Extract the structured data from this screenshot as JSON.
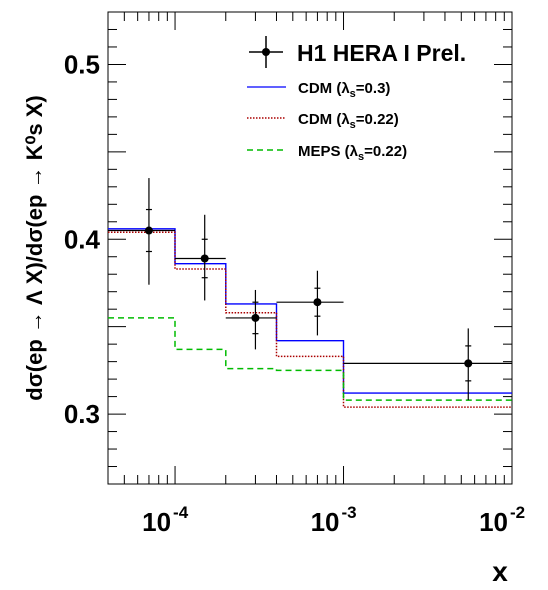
{
  "chart_data": {
    "type": "step",
    "x_scale": "log",
    "xlim": [
      4e-05,
      0.01
    ],
    "ylim": [
      0.26,
      0.53
    ],
    "xlabel": "x",
    "ylabel": "dσ(ep → Λ X)/dσ(ep → K⁰s X)",
    "x_tick_labels": [
      {
        "value": 0.0001,
        "base": "10",
        "exp": "-4"
      },
      {
        "value": 0.001,
        "base": "10",
        "exp": "-3"
      },
      {
        "value": 0.01,
        "base": "10",
        "exp": "-2"
      }
    ],
    "y_tick_labels": [
      {
        "value": 0.3,
        "label": "0.3"
      },
      {
        "value": 0.4,
        "label": "0.4"
      },
      {
        "value": 0.5,
        "label": "0.5"
      }
    ],
    "data_points": {
      "name": "H1 HERA I Prel.",
      "color": "#000000",
      "points": [
        {
          "x": 7e-05,
          "x_low": 4e-05,
          "x_high": 0.0001,
          "y": 0.405,
          "stat_low": 0.393,
          "stat_high": 0.417,
          "tot_low": 0.374,
          "tot_high": 0.435
        },
        {
          "x": 0.00015,
          "x_low": 0.0001,
          "x_high": 0.0002,
          "y": 0.389,
          "stat_low": 0.378,
          "stat_high": 0.4,
          "tot_low": 0.365,
          "tot_high": 0.414
        },
        {
          "x": 0.0003,
          "x_low": 0.0002,
          "x_high": 0.0004,
          "y": 0.355,
          "stat_low": 0.346,
          "stat_high": 0.364,
          "tot_low": 0.337,
          "tot_high": 0.371
        },
        {
          "x": 0.0007,
          "x_low": 0.0004,
          "x_high": 0.001,
          "y": 0.364,
          "stat_low": 0.356,
          "stat_high": 0.372,
          "tot_low": 0.345,
          "tot_high": 0.382
        },
        {
          "x": 0.0055,
          "x_low": 0.001,
          "x_high": 0.01,
          "y": 0.329,
          "stat_low": 0.319,
          "stat_high": 0.339,
          "tot_low": 0.308,
          "tot_high": 0.349
        }
      ]
    },
    "series": [
      {
        "name": "CDM (λs=0.3)",
        "name_main": "CDM (λ",
        "name_sub": "s",
        "name_tail": "=0.3)",
        "color": "#0000ff",
        "style": "solid",
        "bin_edges": [
          4e-05,
          0.0001,
          0.0002,
          0.0004,
          0.001,
          0.01
        ],
        "values": [
          0.406,
          0.386,
          0.363,
          0.342,
          0.312
        ]
      },
      {
        "name": "CDM (λs=0.22)",
        "name_main": "CDM (λ",
        "name_sub": "s",
        "name_tail": "=0.22)",
        "color": "#aa0000",
        "style": "dotted",
        "bin_edges": [
          4e-05,
          0.0001,
          0.0002,
          0.0004,
          0.001,
          0.01
        ],
        "values": [
          0.404,
          0.383,
          0.358,
          0.333,
          0.304
        ]
      },
      {
        "name": "MEPS (λs=0.22)",
        "name_main": "MEPS (λ",
        "name_sub": "s",
        "name_tail": "=0.22)",
        "color": "#00bb00",
        "style": "dashed",
        "bin_edges": [
          4e-05,
          0.0001,
          0.0002,
          0.0004,
          0.001,
          0.01
        ],
        "values": [
          0.355,
          0.337,
          0.326,
          0.325,
          0.308
        ]
      }
    ],
    "grid": false,
    "legend_position": "top-right"
  }
}
